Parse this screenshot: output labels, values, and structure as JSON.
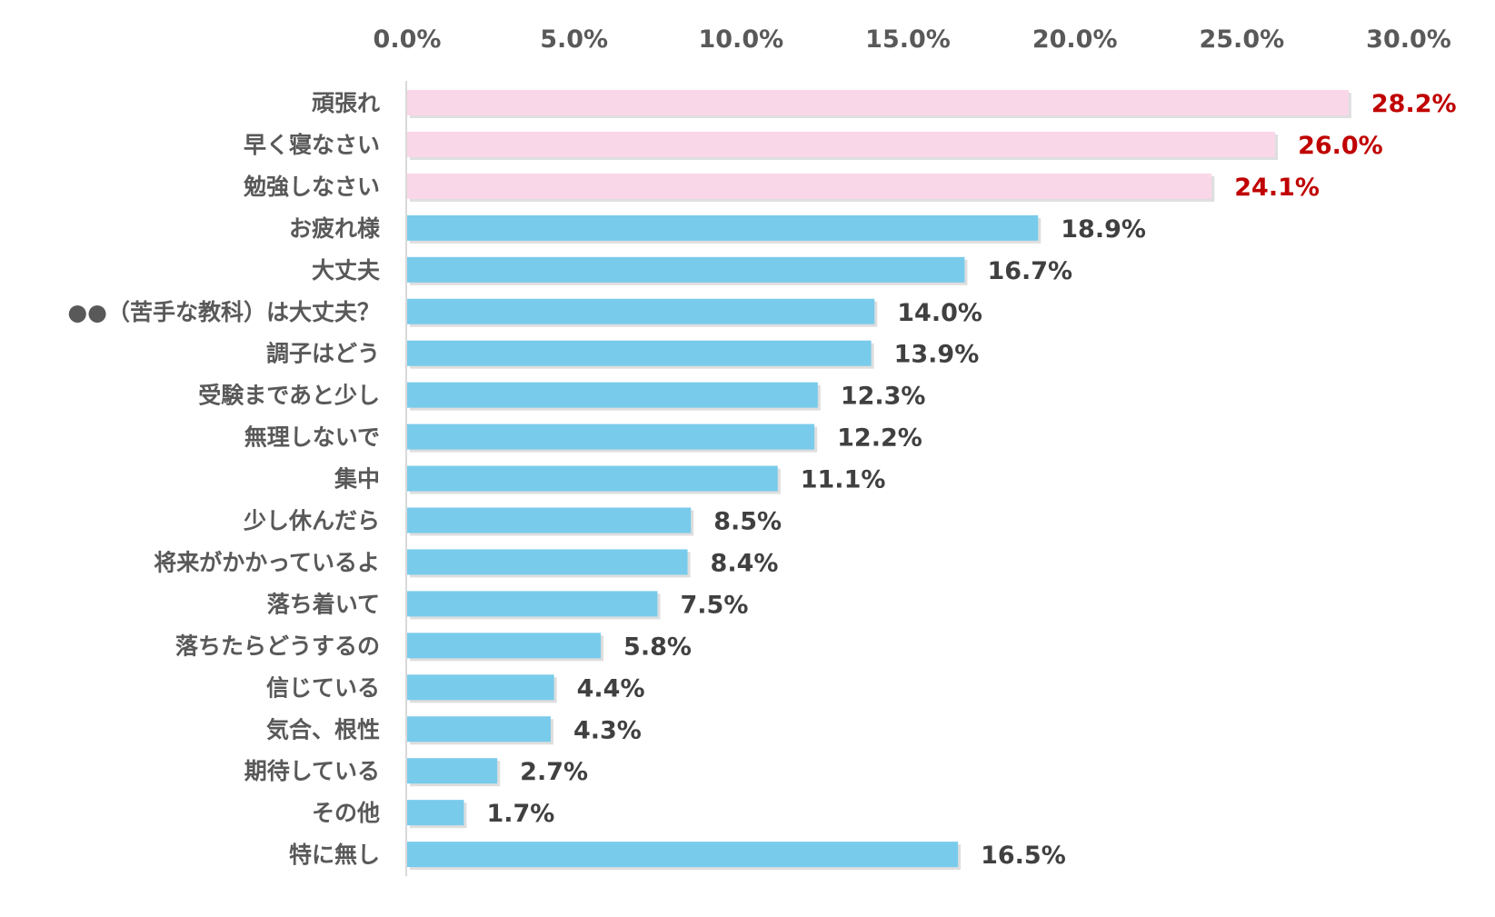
{
  "chart_data": {
    "type": "bar",
    "orientation": "horizontal",
    "title": "",
    "xlabel": "",
    "ylabel": "",
    "xlim": [
      0,
      30
    ],
    "x_ticks": [
      "0.0%",
      "5.0%",
      "10.0%",
      "15.0%",
      "20.0%",
      "25.0%",
      "30.0%"
    ],
    "x_axis_position": "top",
    "grid": false,
    "legend": "none",
    "categories": [
      "頑張れ",
      "早く寝なさい",
      "勉強しなさい",
      "お疲れ様",
      "大丈夫",
      "●●（苦手な教科）は大丈夫？",
      "調子はどう",
      "受験まであと少し",
      "無理しないで",
      "集中",
      "少し休んだら",
      "将来がかかっているよ",
      "落ち着いて",
      "落ちたらどうするの",
      "信じている",
      "気合、根性",
      "期待している",
      "その他",
      "特に無し"
    ],
    "values": [
      28.2,
      26.0,
      24.1,
      18.9,
      16.7,
      14.0,
      13.9,
      12.3,
      12.2,
      11.1,
      8.5,
      8.4,
      7.5,
      5.8,
      4.4,
      4.3,
      2.7,
      1.7,
      16.5
    ],
    "value_labels": [
      "28.2%",
      "26.0%",
      "24.1%",
      "18.9%",
      "16.7%",
      "14.0%",
      "13.9%",
      "12.3%",
      "12.2%",
      "11.1%",
      "8.5%",
      "8.4%",
      "7.5%",
      "5.8%",
      "4.4%",
      "4.3%",
      "2.7%",
      "1.7%",
      "16.5%"
    ],
    "highlight_count": 3,
    "colors": {
      "highlight_bar": "#f9d7e8",
      "normal_bar": "#79cbeb",
      "highlight_label": "#c00000",
      "normal_label": "#404040",
      "axis_text": "#595959",
      "axis_line": "#d9d9d9"
    }
  }
}
